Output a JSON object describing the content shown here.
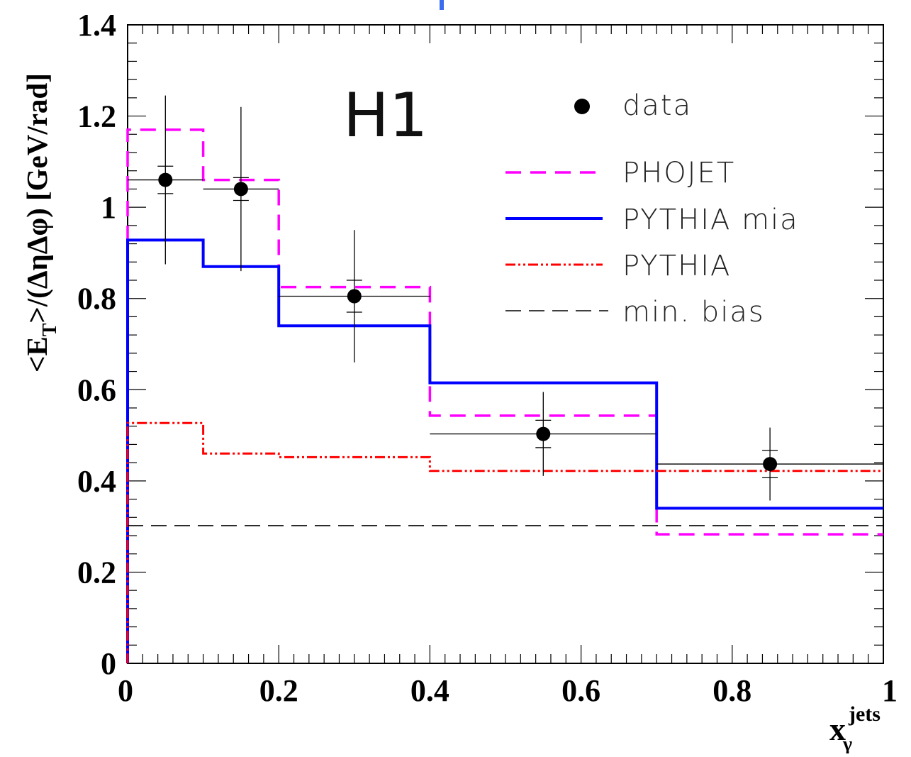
{
  "chart_data": {
    "type": "line",
    "experiment_label": "H1",
    "ylabel": {
      "main": "<E",
      "sub": "T",
      "rest": ">/(ΔηΔφ) [GeV/rad]"
    },
    "xlabel": {
      "main": "x",
      "sup": "jets",
      "sub": "γ"
    },
    "xlim": [
      0,
      1
    ],
    "ylim": [
      0,
      1.4
    ],
    "x_ticks": [
      0,
      0.2,
      0.4,
      0.6,
      0.8,
      1
    ],
    "x_tick_labels": [
      "0",
      "0.2",
      "0.4",
      "0.6",
      "0.8",
      "1"
    ],
    "y_ticks": [
      0,
      0.2,
      0.4,
      0.6,
      0.8,
      1,
      1.2,
      1.4
    ],
    "y_tick_labels": [
      "0",
      "0.2",
      "0.4",
      "0.6",
      "0.8",
      "1",
      "1.2",
      "1.4"
    ],
    "bin_edges": [
      0,
      0.1,
      0.2,
      0.4,
      0.7,
      1.0
    ],
    "data": {
      "name": "data",
      "x": [
        0.05,
        0.15,
        0.3,
        0.55,
        0.85
      ],
      "y": [
        1.06,
        1.04,
        0.805,
        0.503,
        0.437
      ],
      "y_err_stat": [
        0.03,
        0.025,
        0.035,
        0.03,
        0.03
      ],
      "y_err_total": [
        0.185,
        0.18,
        0.145,
        0.092,
        0.08
      ]
    },
    "series": [
      {
        "name": "PHOJET",
        "style": "dashed",
        "color": "#ff00ff",
        "values": [
          1.17,
          1.06,
          0.825,
          0.543,
          0.283
        ]
      },
      {
        "name": "PYTHIA mia",
        "style": "solid",
        "color": "#0000ff",
        "values": [
          0.928,
          0.87,
          0.74,
          0.615,
          0.34
        ]
      },
      {
        "name": "PYTHIA",
        "style": "dash-dot",
        "color": "#ff0000",
        "values": [
          0.527,
          0.46,
          0.452,
          0.422,
          0.422
        ]
      },
      {
        "name": "min. bias",
        "style": "long-dashed",
        "color": "#000000",
        "values": [
          0.302,
          0.302,
          0.302,
          0.302,
          0.302
        ]
      }
    ],
    "legend": {
      "placement": "top-right",
      "entries": [
        "data",
        "PHOJET",
        "PYTHIA mia",
        "PYTHIA",
        "min. bias"
      ]
    },
    "grid": false
  }
}
